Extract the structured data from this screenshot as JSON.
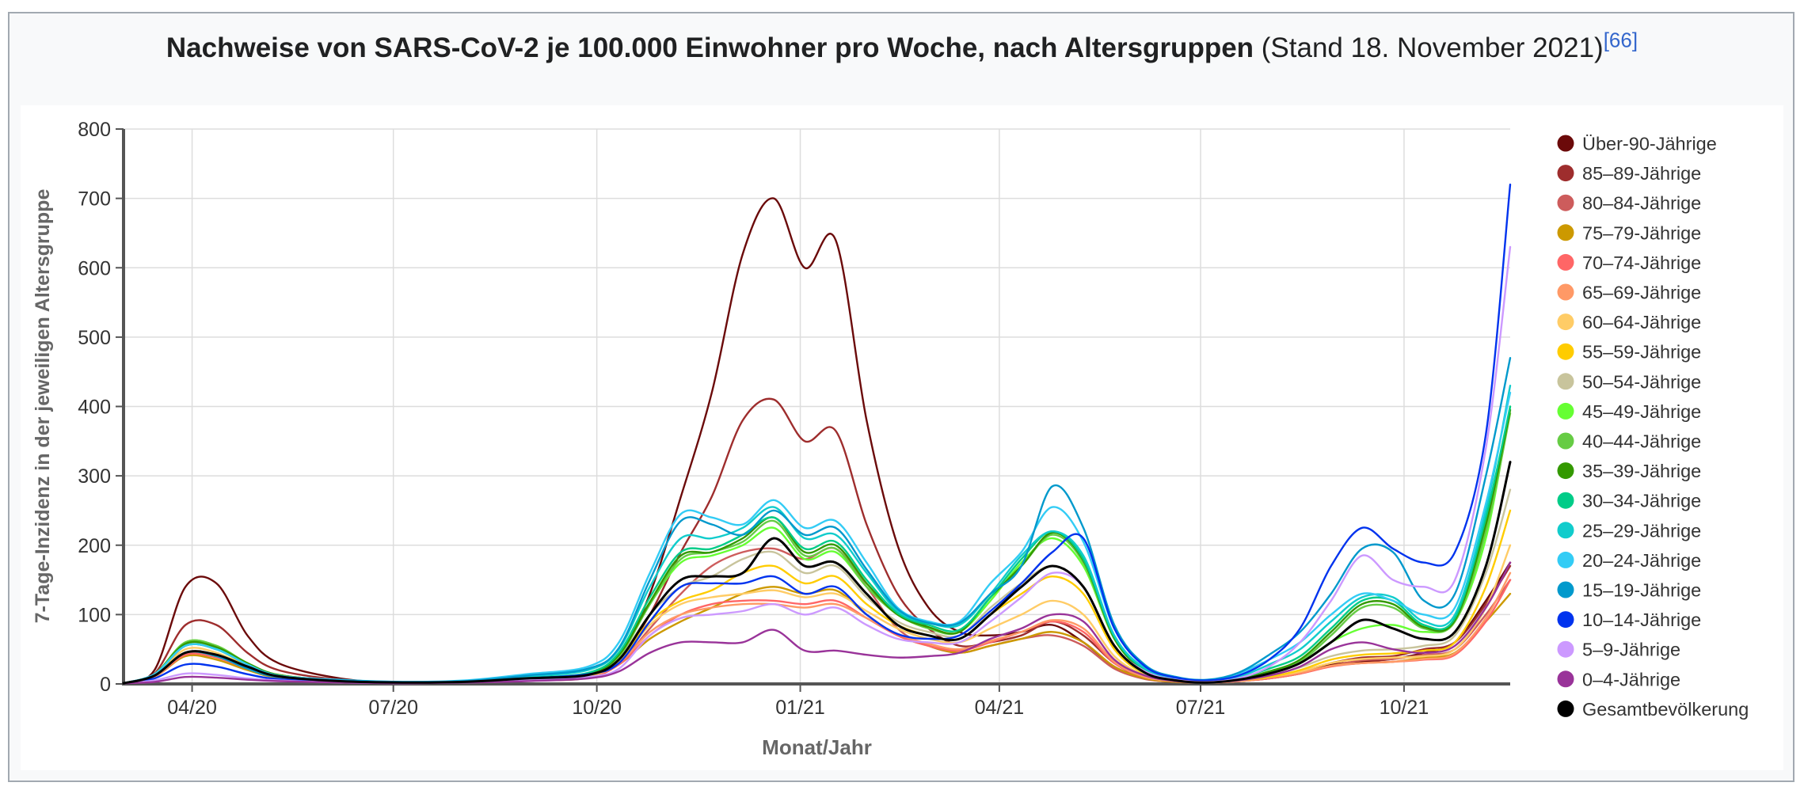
{
  "title": {
    "main": "Nachweise von SARS-CoV-2 je 100.000 Einwohner pro Woche, nach Altersgruppen",
    "sub": "(Stand 18. November 2021)",
    "ref": "[66]"
  },
  "chart_data": {
    "type": "line",
    "xlabel": "Monat/Jahr",
    "ylabel": "7-Tage-Inzidenz in der jeweiligen Altersgruppe",
    "ylim": [
      0,
      800
    ],
    "yticks": [
      "0",
      "100",
      "200",
      "300",
      "400",
      "500",
      "600",
      "700",
      "800"
    ],
    "xlim": [
      "2020-03-01",
      "2021-11-18"
    ],
    "xticks": [
      {
        "date": "2020-04-01",
        "label": "04/20"
      },
      {
        "date": "2020-07-01",
        "label": "07/20"
      },
      {
        "date": "2020-10-01",
        "label": "10/20"
      },
      {
        "date": "2021-01-01",
        "label": "01/21"
      },
      {
        "date": "2021-04-01",
        "label": "04/21"
      },
      {
        "date": "2021-07-01",
        "label": "07/21"
      },
      {
        "date": "2021-10-01",
        "label": "10/21"
      }
    ],
    "grid": true,
    "legend_position": "right",
    "x": [
      "2020-03-01",
      "2020-03-15",
      "2020-03-29",
      "2020-04-12",
      "2020-04-26",
      "2020-05-10",
      "2020-06-07",
      "2020-07-05",
      "2020-08-02",
      "2020-08-30",
      "2020-09-27",
      "2020-10-11",
      "2020-10-25",
      "2020-11-08",
      "2020-11-22",
      "2020-12-06",
      "2020-12-20",
      "2021-01-03",
      "2021-01-17",
      "2021-01-31",
      "2021-02-14",
      "2021-02-28",
      "2021-03-14",
      "2021-03-28",
      "2021-04-11",
      "2021-04-25",
      "2021-05-09",
      "2021-05-23",
      "2021-06-06",
      "2021-06-20",
      "2021-07-04",
      "2021-07-18",
      "2021-08-01",
      "2021-08-15",
      "2021-08-29",
      "2021-09-12",
      "2021-09-26",
      "2021-10-10",
      "2021-10-24",
      "2021-11-07",
      "2021-11-18"
    ],
    "series": [
      {
        "name": "Über-90-Jährige",
        "color": "#6b0a0a",
        "values": [
          1,
          20,
          140,
          145,
          70,
          30,
          8,
          2,
          3,
          6,
          10,
          40,
          130,
          270,
          420,
          620,
          700,
          600,
          640,
          380,
          200,
          110,
          75,
          70,
          75,
          85,
          60,
          25,
          8,
          3,
          2,
          4,
          10,
          18,
          28,
          32,
          36,
          45,
          60,
          120,
          175
        ]
      },
      {
        "name": "85–89-Jährige",
        "color": "#9e2d2d",
        "values": [
          1,
          15,
          85,
          85,
          45,
          20,
          6,
          2,
          3,
          5,
          9,
          35,
          100,
          190,
          270,
          380,
          410,
          350,
          365,
          230,
          130,
          80,
          55,
          60,
          70,
          90,
          70,
          30,
          8,
          3,
          2,
          4,
          10,
          18,
          30,
          38,
          40,
          50,
          60,
          115,
          170
        ]
      },
      {
        "name": "80–84-Jährige",
        "color": "#cd5c5c",
        "values": [
          1,
          12,
          55,
          50,
          28,
          12,
          5,
          2,
          3,
          5,
          9,
          30,
          80,
          130,
          170,
          190,
          195,
          180,
          195,
          140,
          80,
          55,
          45,
          55,
          65,
          70,
          55,
          22,
          7,
          3,
          2,
          4,
          8,
          15,
          26,
          34,
          36,
          42,
          50,
          100,
          150
        ]
      },
      {
        "name": "75–79-Jährige",
        "color": "#cc9900",
        "values": [
          1,
          10,
          40,
          35,
          20,
          9,
          4,
          2,
          3,
          5,
          9,
          28,
          65,
          90,
          110,
          130,
          140,
          130,
          135,
          100,
          70,
          55,
          45,
          55,
          65,
          75,
          60,
          25,
          8,
          3,
          2,
          4,
          8,
          15,
          26,
          30,
          32,
          38,
          45,
          90,
          130
        ]
      },
      {
        "name": "70–74-Jährige",
        "color": "#ff6666",
        "values": [
          1,
          10,
          42,
          38,
          22,
          10,
          4,
          2,
          3,
          6,
          10,
          28,
          70,
          100,
          115,
          120,
          120,
          115,
          120,
          95,
          70,
          55,
          48,
          60,
          75,
          90,
          75,
          30,
          10,
          4,
          2,
          4,
          8,
          15,
          25,
          30,
          32,
          35,
          42,
          90,
          150
        ]
      },
      {
        "name": "65–69-Jährige",
        "color": "#ff9966",
        "values": [
          1,
          10,
          45,
          40,
          23,
          10,
          4,
          2,
          3,
          6,
          11,
          30,
          75,
          100,
          110,
          115,
          115,
          110,
          115,
          95,
          72,
          58,
          50,
          62,
          75,
          92,
          80,
          32,
          10,
          4,
          2,
          4,
          9,
          16,
          26,
          30,
          32,
          36,
          44,
          95,
          160
        ]
      },
      {
        "name": "60–64-Jährige",
        "color": "#ffcc66",
        "values": [
          1,
          12,
          50,
          45,
          25,
          11,
          4,
          2,
          3,
          7,
          12,
          33,
          85,
          115,
          125,
          130,
          135,
          125,
          130,
          105,
          80,
          65,
          60,
          80,
          100,
          120,
          100,
          40,
          12,
          4,
          2,
          5,
          10,
          18,
          30,
          36,
          38,
          40,
          50,
          110,
          200
        ]
      },
      {
        "name": "55–59-Jährige",
        "color": "#ffcc00",
        "values": [
          1,
          13,
          55,
          50,
          27,
          12,
          4,
          2,
          3,
          7,
          12,
          35,
          90,
          120,
          135,
          160,
          170,
          145,
          155,
          115,
          85,
          70,
          65,
          100,
          130,
          155,
          130,
          50,
          14,
          5,
          2,
          5,
          10,
          20,
          35,
          42,
          44,
          48,
          60,
          140,
          250
        ]
      },
      {
        "name": "50–54-Jährige",
        "color": "#c8c49c",
        "values": [
          1,
          13,
          58,
          52,
          28,
          12,
          4,
          2,
          3,
          8,
          13,
          38,
          100,
          140,
          155,
          180,
          190,
          160,
          170,
          125,
          90,
          75,
          70,
          110,
          145,
          170,
          140,
          55,
          15,
          5,
          2,
          5,
          12,
          24,
          40,
          48,
          50,
          55,
          70,
          160,
          280
        ]
      },
      {
        "name": "45–49-Jährige",
        "color": "#66ff33",
        "values": [
          1,
          14,
          60,
          55,
          30,
          13,
          5,
          2,
          3,
          8,
          14,
          40,
          115,
          175,
          185,
          200,
          225,
          180,
          190,
          140,
          100,
          80,
          75,
          120,
          175,
          210,
          170,
          65,
          18,
          6,
          3,
          6,
          15,
          30,
          60,
          80,
          85,
          75,
          90,
          210,
          400
        ]
      },
      {
        "name": "40–44-Jährige",
        "color": "#66cc44",
        "values": [
          1,
          14,
          60,
          55,
          30,
          13,
          5,
          2,
          3,
          8,
          14,
          40,
          115,
          180,
          190,
          205,
          235,
          185,
          195,
          140,
          100,
          80,
          75,
          125,
          170,
          215,
          175,
          65,
          18,
          6,
          3,
          6,
          16,
          32,
          70,
          110,
          110,
          80,
          90,
          220,
          390
        ]
      },
      {
        "name": "35–39-Jährige",
        "color": "#339900",
        "values": [
          1,
          14,
          58,
          53,
          30,
          13,
          5,
          2,
          3,
          8,
          14,
          42,
          118,
          185,
          190,
          210,
          240,
          190,
          200,
          145,
          100,
          82,
          75,
          125,
          170,
          218,
          178,
          66,
          18,
          6,
          3,
          7,
          18,
          35,
          75,
          115,
          115,
          82,
          92,
          230,
          395
        ]
      },
      {
        "name": "30–34-Jährige",
        "color": "#00cc88",
        "values": [
          1,
          14,
          55,
          50,
          28,
          12,
          5,
          2,
          4,
          9,
          16,
          45,
          125,
          190,
          195,
          215,
          240,
          195,
          205,
          150,
          102,
          85,
          78,
          125,
          180,
          220,
          180,
          68,
          20,
          7,
          3,
          8,
          22,
          40,
          80,
          120,
          120,
          85,
          95,
          240,
          400
        ]
      },
      {
        "name": "25–29-Jährige",
        "color": "#11cccc",
        "values": [
          1,
          14,
          55,
          50,
          28,
          12,
          5,
          2,
          4,
          11,
          20,
          50,
          140,
          210,
          210,
          225,
          255,
          210,
          215,
          160,
          105,
          88,
          85,
          130,
          185,
          220,
          185,
          70,
          22,
          8,
          4,
          10,
          28,
          50,
          90,
          125,
          125,
          90,
          100,
          250,
          430
        ]
      },
      {
        "name": "20–24-Jährige",
        "color": "#33ccf5",
        "values": [
          1,
          14,
          55,
          50,
          28,
          12,
          6,
          3,
          5,
          14,
          25,
          60,
          160,
          245,
          240,
          230,
          265,
          225,
          235,
          175,
          110,
          90,
          90,
          145,
          190,
          255,
          205,
          80,
          25,
          9,
          5,
          15,
          35,
          60,
          100,
          130,
          120,
          100,
          110,
          260,
          420
        ]
      },
      {
        "name": "15–19-Jährige",
        "color": "#0099cc",
        "values": [
          1,
          12,
          45,
          40,
          22,
          10,
          5,
          3,
          4,
          12,
          22,
          52,
          150,
          235,
          230,
          215,
          250,
          215,
          225,
          165,
          108,
          88,
          88,
          130,
          170,
          285,
          225,
          85,
          27,
          10,
          6,
          16,
          42,
          75,
          130,
          195,
          190,
          120,
          130,
          300,
          470
        ]
      },
      {
        "name": "10–14-Jährige",
        "color": "#0033ee",
        "values": [
          1,
          8,
          28,
          25,
          14,
          7,
          3,
          2,
          3,
          8,
          14,
          30,
          90,
          140,
          145,
          145,
          155,
          130,
          140,
          100,
          72,
          65,
          70,
          105,
          145,
          190,
          210,
          80,
          25,
          9,
          5,
          12,
          35,
          80,
          170,
          225,
          195,
          175,
          190,
          360,
          720
        ]
      },
      {
        "name": "5–9-Jährige",
        "color": "#cc99ff",
        "values": [
          1,
          5,
          15,
          13,
          8,
          5,
          2,
          1,
          2,
          5,
          10,
          22,
          70,
          95,
          100,
          105,
          115,
          100,
          110,
          85,
          65,
          60,
          60,
          90,
          125,
          160,
          140,
          55,
          18,
          6,
          3,
          8,
          25,
          60,
          120,
          185,
          150,
          140,
          150,
          340,
          630
        ]
      },
      {
        "name": "0–4-Jährige",
        "color": "#993399",
        "values": [
          1,
          3,
          10,
          9,
          6,
          4,
          2,
          1,
          2,
          4,
          8,
          18,
          45,
          60,
          60,
          60,
          78,
          48,
          48,
          42,
          38,
          40,
          45,
          65,
          80,
          100,
          90,
          35,
          12,
          4,
          2,
          5,
          12,
          25,
          50,
          60,
          50,
          45,
          55,
          110,
          175
        ]
      },
      {
        "name": "Gesamtbevölkerung",
        "color": "#000000",
        "values": [
          1,
          12,
          45,
          42,
          25,
          11,
          4,
          2,
          3,
          8,
          13,
          35,
          100,
          150,
          155,
          160,
          210,
          170,
          175,
          130,
          85,
          70,
          65,
          100,
          140,
          170,
          140,
          55,
          16,
          5,
          2,
          6,
          15,
          30,
          60,
          92,
          80,
          65,
          75,
          170,
          320
        ]
      }
    ]
  }
}
